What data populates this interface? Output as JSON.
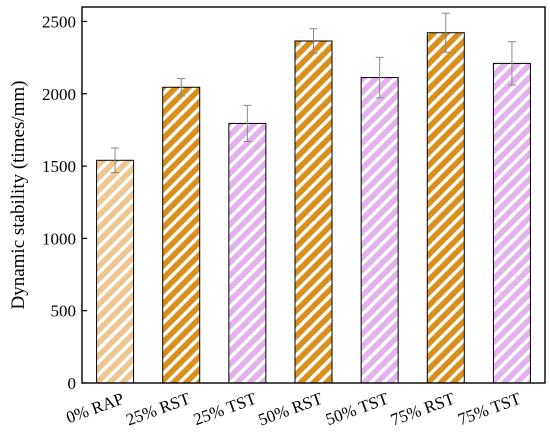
{
  "chart_data": {
    "type": "bar",
    "title": "",
    "xlabel": "",
    "ylabel": "Dynamic stability (times/mm)",
    "ylim": [
      0,
      2600
    ],
    "yticks": [
      "0",
      "500",
      "1000",
      "1500",
      "2000",
      "2500"
    ],
    "grid": false,
    "legend": "none",
    "categories": [
      "0% RAP",
      "25% RST",
      "25% TST",
      "50% RST",
      "50% TST",
      "75% RST",
      "75% TST"
    ],
    "values": [
      1540,
      2045,
      1795,
      2365,
      2112,
      2422,
      2210
    ],
    "errors": [
      85,
      60,
      125,
      85,
      140,
      135,
      150
    ],
    "fills": [
      "#ecc78f",
      "#d98f1c",
      "#e3b1ec",
      "#d98f1c",
      "#e3b1ec",
      "#d98f1c",
      "#e3b1ec"
    ],
    "hatch_color": "#ffffff",
    "bar_edge": "#000000",
    "errorbar_color": "#888888"
  }
}
